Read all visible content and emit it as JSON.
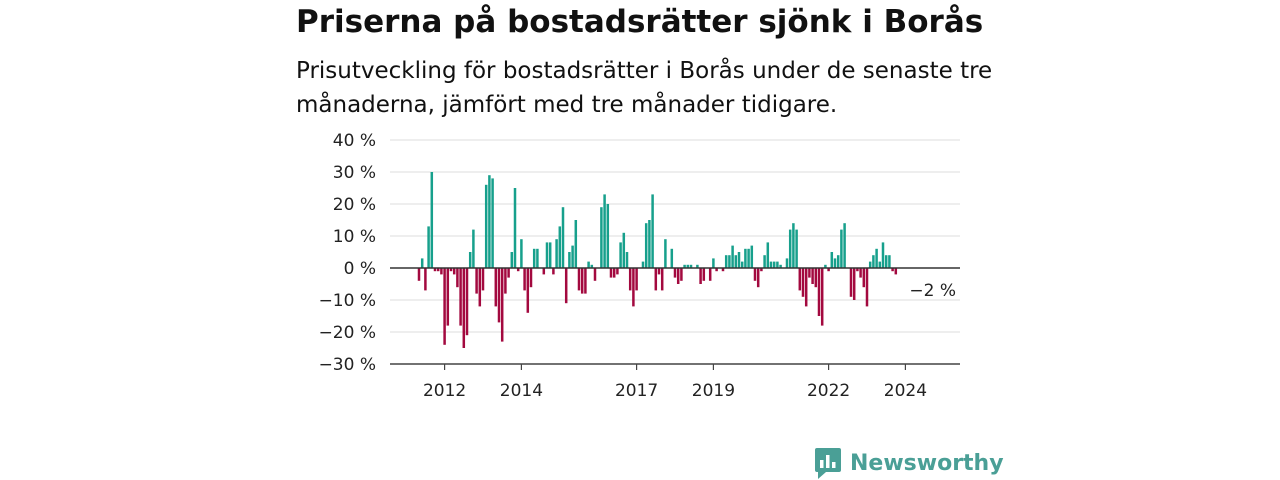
{
  "chart_data": {
    "type": "bar",
    "title": "Priserna på bostadsrätter sjönk i Borås",
    "subtitle": "Prisutveckling för bostadsrätter i Borås under de senaste tre månaderna, jämfört med tre månader tidigare.",
    "xlabel": "",
    "ylabel": "",
    "ylim": [
      -30,
      40
    ],
    "y_ticks": [
      {
        "value": 40,
        "label": "40 %"
      },
      {
        "value": 30,
        "label": "30 %"
      },
      {
        "value": 20,
        "label": "20 %"
      },
      {
        "value": 10,
        "label": "10 %"
      },
      {
        "value": 0,
        "label": "0 %"
      },
      {
        "value": -10,
        "label": "−10 %"
      },
      {
        "value": -20,
        "label": "−20 %"
      },
      {
        "value": -30,
        "label": "−30 %"
      }
    ],
    "x_ticks": [
      {
        "index": 8,
        "label": "2012"
      },
      {
        "index": 32,
        "label": "2014"
      },
      {
        "index": 68,
        "label": "2017"
      },
      {
        "index": 92,
        "label": "2019"
      },
      {
        "index": 128,
        "label": "2022"
      },
      {
        "index": 152,
        "label": "2024"
      }
    ],
    "grid": true,
    "legend": "none",
    "colors": {
      "positive": "#17a08c",
      "negative": "#a3093f",
      "axis": "#444444",
      "brand": "#4a9f96"
    },
    "values": [
      -4,
      3,
      -7,
      13,
      30,
      -1,
      -1,
      -2,
      -24,
      -18,
      -1,
      -2,
      -6,
      -18,
      -25,
      -21,
      5,
      12,
      -8,
      -12,
      -7,
      26,
      29,
      28,
      -12,
      -17,
      -23,
      -8,
      -3,
      5,
      25,
      -1,
      9,
      -7,
      -14,
      -6,
      6,
      6,
      0,
      -2,
      8,
      8,
      -2,
      9,
      13,
      19,
      -11,
      5,
      7,
      15,
      -7,
      -8,
      -8,
      2,
      1,
      -4,
      0,
      19,
      23,
      20,
      -3,
      -3,
      -2,
      8,
      11,
      5,
      -7,
      -12,
      -7,
      0,
      2,
      14,
      15,
      23,
      -7,
      -2,
      -7,
      9,
      0,
      6,
      -3,
      -5,
      -4,
      1,
      1,
      1,
      0,
      1,
      -5,
      -4,
      0,
      -4,
      3,
      -1,
      0,
      -1,
      4,
      4,
      7,
      4,
      5,
      2,
      6,
      6,
      7,
      -4,
      -6,
      -1,
      4,
      8,
      2,
      2,
      2,
      1,
      0,
      3,
      12,
      14,
      12,
      -7,
      -9,
      -12,
      -3,
      -5,
      -6,
      -15,
      -18,
      1,
      -1,
      5,
      3,
      4,
      12,
      14,
      0,
      -9,
      -10,
      -1,
      -3,
      -6,
      -12,
      2,
      4,
      6,
      2,
      8,
      4,
      4,
      -1,
      -2
    ],
    "annotations": [
      {
        "text": "−2 %",
        "index": 149,
        "value": -2
      }
    ]
  },
  "brand": {
    "name": "Newsworthy",
    "icon": "newsworthy-logo-icon"
  }
}
